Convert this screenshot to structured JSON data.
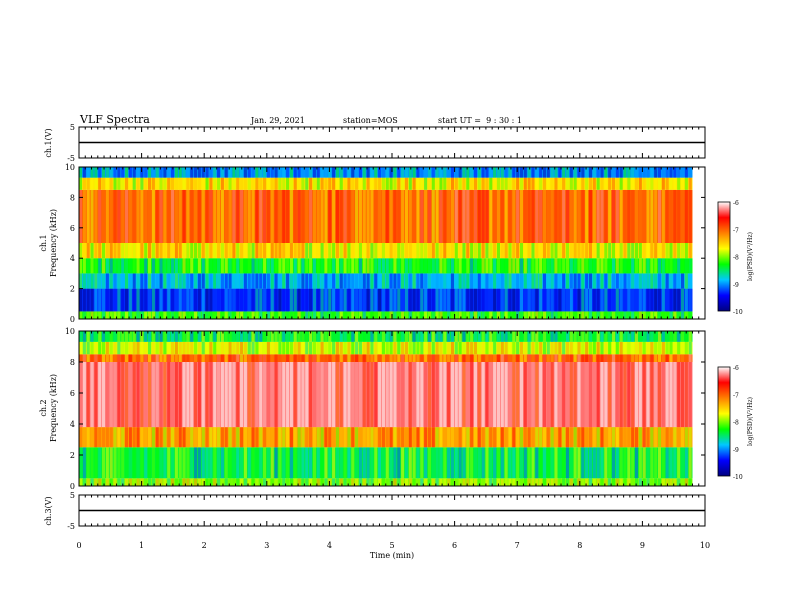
{
  "header": {
    "title": "VLF Spectra",
    "date": "Jan. 29, 2021",
    "station": "station=MOS",
    "start": "start UT =  9 : 30 : 1"
  },
  "colorbar": {
    "label": "log(PSD)(V²/Hz)",
    "ticks": [
      "-6",
      "-7",
      "-8",
      "-9",
      "-10"
    ],
    "stops": [
      "#000080",
      "#0000ff",
      "#00c8ff",
      "#00ff00",
      "#ffff00",
      "#ff8000",
      "#ff0000",
      "#ffffff"
    ]
  },
  "chart_data": [
    {
      "type": "line",
      "name": "ch1-waveform",
      "ylabel": "ch.1(V)",
      "ylim": [
        -5,
        5
      ],
      "ytick_labels": [
        "5",
        "-5"
      ],
      "xlim": [
        0,
        10
      ],
      "x": [
        0,
        10
      ],
      "y": [
        0,
        0
      ]
    },
    {
      "type": "heatmap",
      "name": "ch1-spectrogram",
      "ylabel": "ch.1\nFrequency (kHz)",
      "ylim": [
        0,
        10
      ],
      "ytick_labels": [
        "0",
        "2",
        "4",
        "6",
        "8",
        "10"
      ],
      "xlim": [
        0,
        10.0
      ],
      "data_end_min": 9.8,
      "zlim": [
        -10,
        -6
      ],
      "bands_khz": [
        {
          "from": 0.0,
          "to": 0.5,
          "log_psd": -8.2
        },
        {
          "from": 0.5,
          "to": 2.0,
          "log_psd": -9.3
        },
        {
          "from": 2.0,
          "to": 3.0,
          "log_psd": -8.9
        },
        {
          "from": 3.0,
          "to": 4.0,
          "log_psd": -8.3
        },
        {
          "from": 4.0,
          "to": 5.0,
          "log_psd": -7.6
        },
        {
          "from": 5.0,
          "to": 8.5,
          "log_psd": -7.0
        },
        {
          "from": 8.5,
          "to": 9.3,
          "log_psd": -7.6
        },
        {
          "from": 9.3,
          "to": 10.0,
          "log_psd": -9.0
        }
      ]
    },
    {
      "type": "heatmap",
      "name": "ch2-spectrogram",
      "ylabel": "ch.2\nFrequency (kHz)",
      "ylim": [
        0,
        10
      ],
      "ytick_labels": [
        "0",
        "2",
        "4",
        "6",
        "8",
        "10"
      ],
      "xlim": [
        0,
        10.0
      ],
      "data_end_min": 9.8,
      "zlim": [
        -10,
        -6
      ],
      "bands_khz": [
        {
          "from": 0.0,
          "to": 0.5,
          "log_psd": -8.0
        },
        {
          "from": 0.5,
          "to": 2.5,
          "log_psd": -8.4
        },
        {
          "from": 2.5,
          "to": 3.8,
          "log_psd": -7.3
        },
        {
          "from": 3.8,
          "to": 8.0,
          "log_psd": -6.3
        },
        {
          "from": 8.0,
          "to": 8.5,
          "log_psd": -7.0
        },
        {
          "from": 8.5,
          "to": 9.3,
          "log_psd": -7.8
        },
        {
          "from": 9.3,
          "to": 10.0,
          "log_psd": -8.4
        }
      ]
    },
    {
      "type": "line",
      "name": "ch3-waveform",
      "ylabel": "ch.3(V)",
      "ylim": [
        -5,
        5
      ],
      "ytick_labels": [
        "5",
        "-5"
      ],
      "xlim": [
        0,
        10
      ],
      "x": [
        0,
        10
      ],
      "y": [
        0,
        0
      ]
    }
  ],
  "xaxis": {
    "label": "Time (min)",
    "ticks": [
      "0",
      "1",
      "2",
      "3",
      "4",
      "5",
      "6",
      "7",
      "8",
      "9",
      "10"
    ]
  }
}
